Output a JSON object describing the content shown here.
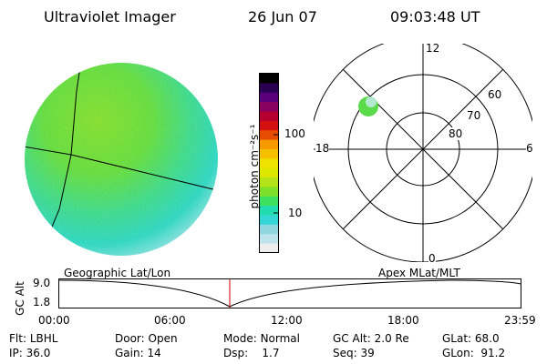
{
  "header": {
    "instrument": "Ultraviolet Imager",
    "date": "26 Jun 07",
    "time": "09:03:48 UT"
  },
  "colorbar": {
    "unit_label": "photon cm⁻²s⁻¹",
    "ticks": [
      "100",
      "10"
    ],
    "colors": [
      "#eeeeee",
      "#bfe3ea",
      "#8fd6e0",
      "#35d6d6",
      "#22dcb0",
      "#3ee060",
      "#7ee02a",
      "#b4e418",
      "#dde600",
      "#f0e200",
      "#f5c000",
      "#f59a00",
      "#e64d00",
      "#d41010",
      "#b30030",
      "#8a0060",
      "#5a007a",
      "#2a0050",
      "#000000"
    ]
  },
  "polar": {
    "mlt_labels": [
      "12",
      "18",
      "6",
      "0"
    ],
    "lat_labels": [
      "60",
      "70",
      "80"
    ]
  },
  "timeline": {
    "left_label": "Geographic Lat/Lon",
    "right_label": "Apex MLat/MLT",
    "axis_title": "GC Alt",
    "y_ticks": [
      "9.0",
      "1.8"
    ],
    "x_ticks": [
      "00:00",
      "06:00",
      "12:00",
      "18:00",
      "23:59"
    ],
    "marker_color": "#cc0000"
  },
  "info": {
    "row1": [
      {
        "label": "Flt:",
        "value": "LBHL"
      },
      {
        "label": "Door:",
        "value": "Open"
      },
      {
        "label": "Mode:",
        "value": "Normal"
      },
      {
        "label": "GC Alt:",
        "value": "2.0 Re"
      },
      {
        "label": "GLat:",
        "value": "68.0"
      }
    ],
    "row2": [
      {
        "label": "IP:",
        "value": "36.0"
      },
      {
        "label": "Gain:",
        "value": "14"
      },
      {
        "label": "Dsp:",
        "value": "1.7"
      },
      {
        "label": "Seq:",
        "value": "39"
      },
      {
        "label": "GLon:",
        "value": "91.2"
      }
    ]
  }
}
